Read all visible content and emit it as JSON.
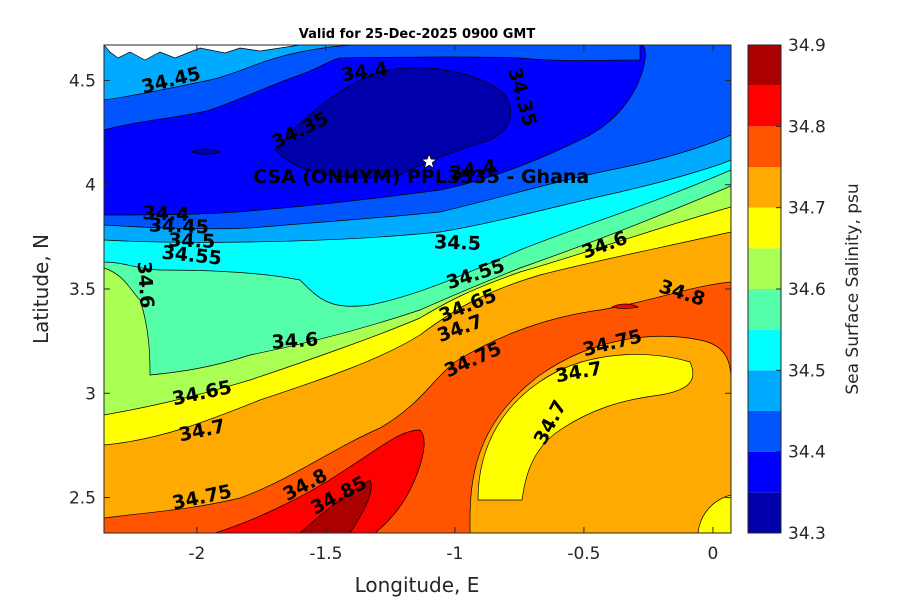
{
  "chart_data": {
    "type": "contourf",
    "title": "Valid for 25-Dec-2025 0900 GMT",
    "xlabel": "Longitude, E",
    "ylabel": "Latitude, N",
    "xlim": [
      -2.36,
      0.07
    ],
    "ylim": [
      2.33,
      4.67
    ],
    "xticks": [
      -2,
      -1.5,
      -1,
      -0.5,
      0
    ],
    "xtick_labels": [
      "-2",
      "-1.5",
      "-1",
      "-0.5",
      "0"
    ],
    "yticks": [
      2.5,
      3,
      3.5,
      4,
      4.5
    ],
    "ytick_labels": [
      "2.5",
      "3",
      "3.5",
      "4",
      "4.5"
    ],
    "colorbar": {
      "label": "Sea Surface Salinity, psu",
      "ticks": [
        34.3,
        34.4,
        34.5,
        34.6,
        34.7,
        34.8,
        34.9
      ],
      "tick_labels": [
        "34.3",
        "34.4",
        "34.5",
        "34.6",
        "34.7",
        "34.8",
        "34.9"
      ],
      "levels": [
        34.3,
        34.35,
        34.4,
        34.45,
        34.5,
        34.55,
        34.6,
        34.65,
        34.7,
        34.75,
        34.8,
        34.85,
        34.9
      ],
      "colors": [
        "#0000aa",
        "#0000ff",
        "#0055ff",
        "#00aaff",
        "#00ffff",
        "#55ffaa",
        "#aaff55",
        "#ffff00",
        "#ffaa00",
        "#ff5500",
        "#ff0000",
        "#aa0000"
      ]
    },
    "contour_labels": [
      {
        "text": "34.45",
        "lon": -2.1,
        "lat": 4.5,
        "angle": -14
      },
      {
        "text": "34.4",
        "lon": -1.35,
        "lat": 4.54,
        "angle": -8
      },
      {
        "text": "34.35",
        "lon": -1.6,
        "lat": 4.26,
        "angle": -26
      },
      {
        "text": "34.35",
        "lon": -0.74,
        "lat": 4.42,
        "angle": 74
      },
      {
        "text": "34.4",
        "lon": -0.93,
        "lat": 4.07,
        "angle": -10
      },
      {
        "text": "34.4",
        "lon": -2.12,
        "lat": 3.86,
        "angle": 2
      },
      {
        "text": "34.45",
        "lon": -2.07,
        "lat": 3.8,
        "angle": 2
      },
      {
        "text": "34.5",
        "lon": -2.02,
        "lat": 3.73,
        "angle": 2
      },
      {
        "text": "34.55",
        "lon": -2.02,
        "lat": 3.66,
        "angle": 6
      },
      {
        "text": "34.6",
        "lon": -2.2,
        "lat": 3.52,
        "angle": 86
      },
      {
        "text": "34.5",
        "lon": -0.99,
        "lat": 3.72,
        "angle": 2
      },
      {
        "text": "34.55",
        "lon": -0.92,
        "lat": 3.57,
        "angle": -18
      },
      {
        "text": "34.6",
        "lon": -0.42,
        "lat": 3.71,
        "angle": -20
      },
      {
        "text": "34.65",
        "lon": -0.95,
        "lat": 3.42,
        "angle": -22
      },
      {
        "text": "34.7",
        "lon": -0.98,
        "lat": 3.31,
        "angle": -20
      },
      {
        "text": "34.75",
        "lon": -0.93,
        "lat": 3.16,
        "angle": -24
      },
      {
        "text": "34.6",
        "lon": -1.62,
        "lat": 3.25,
        "angle": -4
      },
      {
        "text": "34.65",
        "lon": -1.98,
        "lat": 3.0,
        "angle": -12
      },
      {
        "text": "34.7",
        "lon": -1.98,
        "lat": 2.82,
        "angle": -12
      },
      {
        "text": "34.75",
        "lon": -1.98,
        "lat": 2.5,
        "angle": -12
      },
      {
        "text": "34.8",
        "lon": -1.58,
        "lat": 2.56,
        "angle": -28
      },
      {
        "text": "34.85",
        "lon": -1.45,
        "lat": 2.51,
        "angle": -28
      },
      {
        "text": "34.75",
        "lon": -0.39,
        "lat": 3.24,
        "angle": -14
      },
      {
        "text": "34.7",
        "lon": -0.52,
        "lat": 3.1,
        "angle": -10
      },
      {
        "text": "34.7",
        "lon": -0.63,
        "lat": 2.86,
        "angle": -62
      },
      {
        "text": "34.8",
        "lon": -0.12,
        "lat": 3.48,
        "angle": 18
      }
    ],
    "marker": {
      "label": "CSA (ONHYM) PPL3535 - Ghana",
      "lon": -1.1,
      "lat": 4.11,
      "symbol": "star"
    }
  }
}
